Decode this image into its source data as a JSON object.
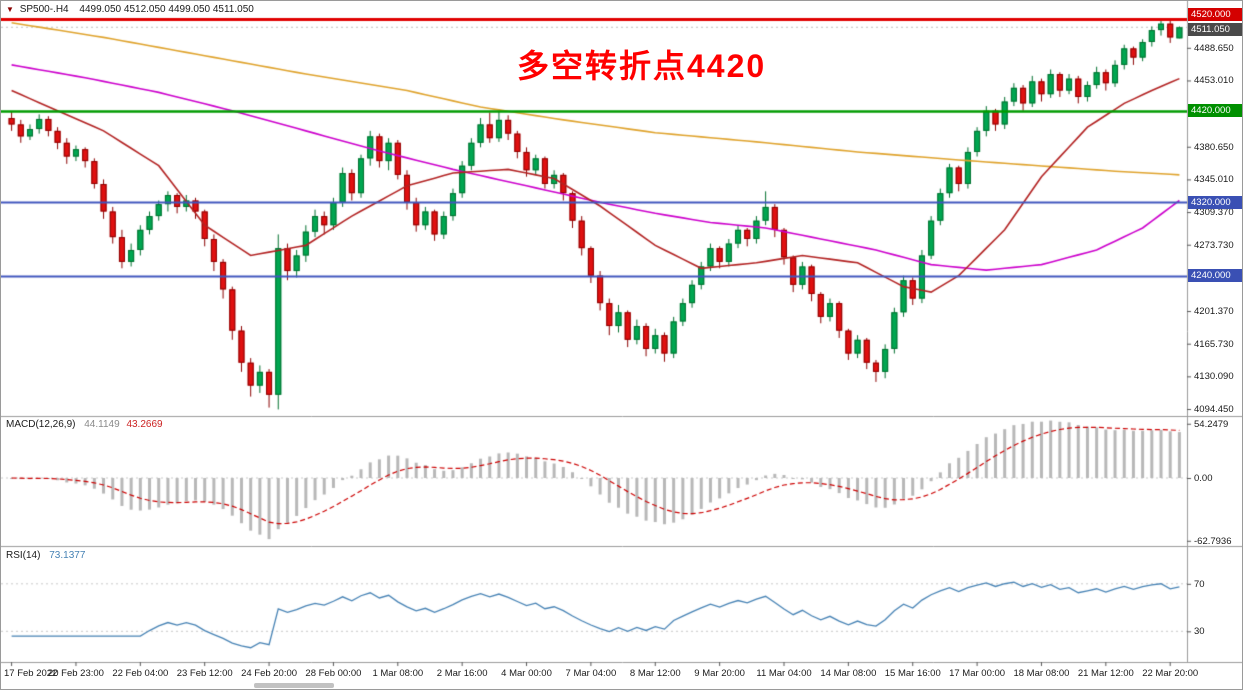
{
  "title": {
    "dropdown_icon": "▼",
    "symbol": "SP500-.H4",
    "ohlc": "4499.050 4512.050 4499.050 4511.050"
  },
  "annotation": {
    "text": "多空转折点4420",
    "color": "#FF0000"
  },
  "panels": {
    "macd": {
      "name": "MACD(12,26,9)",
      "value_main": "44.1149",
      "value_signal": "43.2669"
    },
    "rsi": {
      "name": "RSI(14)",
      "value": "73.1377"
    }
  },
  "colors": {
    "background": "#FFFFFF",
    "candle_up": "#00A651",
    "candle_up_border": "#00702F",
    "candle_down": "#E01010",
    "candle_down_border": "#8B0000",
    "ma_slow": "#DFA32D",
    "ma_mid": "#CC00CC",
    "ma_fast": "#B22222",
    "macd_hist": "#B8B8B8",
    "macd_signal": "#CC0000",
    "rsi_line": "#4682B4",
    "line_resistance": "#E00000",
    "line_pivot": "#009B00",
    "line_support": "#4056BE"
  },
  "chart_data": {
    "type": "candlestick",
    "symbol": "SP500-.H4",
    "timeframe": "H4",
    "title": "SP500-.H4 4499.050 4512.050 4499.050 4511.050",
    "grid": "off",
    "ylim": [
      4089,
      4531
    ],
    "ohlc_current": {
      "open": 4499.05,
      "high": 4512.05,
      "low": 4499.05,
      "close": 4511.05
    },
    "candles": [
      [
        4412,
        4419,
        4398,
        4405
      ],
      [
        4405,
        4410,
        4385,
        4392
      ],
      [
        4392,
        4405,
        4388,
        4400
      ],
      [
        4400,
        4416,
        4395,
        4411
      ],
      [
        4411,
        4414,
        4392,
        4398
      ],
      [
        4398,
        4402,
        4378,
        4385
      ],
      [
        4385,
        4390,
        4362,
        4370
      ],
      [
        4370,
        4382,
        4365,
        4378
      ],
      [
        4378,
        4380,
        4358,
        4365
      ],
      [
        4365,
        4368,
        4335,
        4340
      ],
      [
        4340,
        4345,
        4302,
        4310
      ],
      [
        4310,
        4315,
        4275,
        4282
      ],
      [
        4282,
        4290,
        4248,
        4255
      ],
      [
        4255,
        4275,
        4250,
        4268
      ],
      [
        4268,
        4295,
        4262,
        4290
      ],
      [
        4290,
        4310,
        4285,
        4305
      ],
      [
        4305,
        4322,
        4300,
        4318
      ],
      [
        4318,
        4332,
        4310,
        4328
      ],
      [
        4328,
        4330,
        4308,
        4315
      ],
      [
        4315,
        4328,
        4310,
        4322
      ],
      [
        4322,
        4325,
        4302,
        4310
      ],
      [
        4310,
        4312,
        4272,
        4280
      ],
      [
        4280,
        4285,
        4245,
        4255
      ],
      [
        4255,
        4258,
        4215,
        4225
      ],
      [
        4225,
        4228,
        4170,
        4180
      ],
      [
        4180,
        4185,
        4135,
        4145
      ],
      [
        4145,
        4150,
        4108,
        4120
      ],
      [
        4120,
        4142,
        4112,
        4135
      ],
      [
        4135,
        4138,
        4096,
        4110
      ],
      [
        4110,
        4285,
        4094,
        4270
      ],
      [
        4270,
        4275,
        4235,
        4245
      ],
      [
        4245,
        4268,
        4238,
        4262
      ],
      [
        4262,
        4295,
        4255,
        4288
      ],
      [
        4288,
        4312,
        4282,
        4305
      ],
      [
        4305,
        4310,
        4285,
        4295
      ],
      [
        4295,
        4325,
        4290,
        4320
      ],
      [
        4320,
        4358,
        4315,
        4352
      ],
      [
        4352,
        4356,
        4322,
        4330
      ],
      [
        4330,
        4372,
        4325,
        4368
      ],
      [
        4368,
        4398,
        4360,
        4392
      ],
      [
        4392,
        4395,
        4358,
        4365
      ],
      [
        4365,
        4390,
        4355,
        4385
      ],
      [
        4385,
        4388,
        4345,
        4350
      ],
      [
        4350,
        4355,
        4312,
        4320
      ],
      [
        4320,
        4325,
        4288,
        4295
      ],
      [
        4295,
        4315,
        4290,
        4310
      ],
      [
        4310,
        4312,
        4278,
        4285
      ],
      [
        4285,
        4310,
        4280,
        4305
      ],
      [
        4305,
        4335,
        4300,
        4330
      ],
      [
        4330,
        4365,
        4325,
        4360
      ],
      [
        4360,
        4390,
        4355,
        4385
      ],
      [
        4385,
        4412,
        4380,
        4405
      ],
      [
        4405,
        4418,
        4385,
        4390
      ],
      [
        4390,
        4420,
        4386,
        4410
      ],
      [
        4410,
        4415,
        4388,
        4395
      ],
      [
        4395,
        4398,
        4368,
        4375
      ],
      [
        4375,
        4380,
        4348,
        4355
      ],
      [
        4355,
        4372,
        4350,
        4368
      ],
      [
        4368,
        4370,
        4335,
        4340
      ],
      [
        4340,
        4355,
        4335,
        4350
      ],
      [
        4350,
        4352,
        4322,
        4330
      ],
      [
        4330,
        4332,
        4292,
        4300
      ],
      [
        4300,
        4305,
        4262,
        4270
      ],
      [
        4270,
        4272,
        4232,
        4240
      ],
      [
        4240,
        4245,
        4202,
        4210
      ],
      [
        4210,
        4215,
        4175,
        4185
      ],
      [
        4185,
        4208,
        4178,
        4200
      ],
      [
        4200,
        4202,
        4162,
        4170
      ],
      [
        4170,
        4192,
        4165,
        4185
      ],
      [
        4185,
        4188,
        4152,
        4160
      ],
      [
        4160,
        4182,
        4155,
        4175
      ],
      [
        4175,
        4178,
        4146,
        4155
      ],
      [
        4155,
        4195,
        4150,
        4190
      ],
      [
        4190,
        4215,
        4185,
        4210
      ],
      [
        4210,
        4235,
        4205,
        4230
      ],
      [
        4230,
        4255,
        4225,
        4250
      ],
      [
        4250,
        4275,
        4245,
        4270
      ],
      [
        4270,
        4272,
        4248,
        4255
      ],
      [
        4255,
        4280,
        4250,
        4275
      ],
      [
        4275,
        4295,
        4270,
        4290
      ],
      [
        4290,
        4292,
        4272,
        4280
      ],
      [
        4280,
        4305,
        4275,
        4300
      ],
      [
        4300,
        4332,
        4295,
        4315
      ],
      [
        4315,
        4318,
        4282,
        4290
      ],
      [
        4290,
        4292,
        4252,
        4260
      ],
      [
        4260,
        4262,
        4222,
        4230
      ],
      [
        4230,
        4255,
        4225,
        4250
      ],
      [
        4250,
        4252,
        4212,
        4220
      ],
      [
        4220,
        4222,
        4188,
        4195
      ],
      [
        4195,
        4215,
        4190,
        4210
      ],
      [
        4210,
        4212,
        4172,
        4180
      ],
      [
        4180,
        4182,
        4148,
        4155
      ],
      [
        4155,
        4175,
        4150,
        4170
      ],
      [
        4170,
        4172,
        4138,
        4145
      ],
      [
        4145,
        4148,
        4124,
        4135
      ],
      [
        4135,
        4165,
        4128,
        4160
      ],
      [
        4160,
        4205,
        4155,
        4200
      ],
      [
        4200,
        4240,
        4195,
        4235
      ],
      [
        4235,
        4238,
        4208,
        4215
      ],
      [
        4215,
        4268,
        4210,
        4262
      ],
      [
        4262,
        4305,
        4258,
        4300
      ],
      [
        4300,
        4335,
        4295,
        4330
      ],
      [
        4330,
        4362,
        4325,
        4358
      ],
      [
        4358,
        4360,
        4332,
        4340
      ],
      [
        4340,
        4380,
        4335,
        4375
      ],
      [
        4375,
        4402,
        4370,
        4398
      ],
      [
        4398,
        4425,
        4392,
        4420
      ],
      [
        4420,
        4422,
        4398,
        4405
      ],
      [
        4405,
        4435,
        4400,
        4430
      ],
      [
        4430,
        4450,
        4425,
        4445
      ],
      [
        4445,
        4448,
        4420,
        4428
      ],
      [
        4428,
        4458,
        4424,
        4452
      ],
      [
        4452,
        4455,
        4430,
        4438
      ],
      [
        4438,
        4465,
        4434,
        4460
      ],
      [
        4460,
        4462,
        4435,
        4442
      ],
      [
        4442,
        4460,
        4438,
        4455
      ],
      [
        4455,
        4458,
        4428,
        4435
      ],
      [
        4435,
        4452,
        4430,
        4448
      ],
      [
        4448,
        4468,
        4444,
        4462
      ],
      [
        4462,
        4465,
        4442,
        4450
      ],
      [
        4450,
        4475,
        4446,
        4470
      ],
      [
        4470,
        4492,
        4465,
        4488
      ],
      [
        4488,
        4490,
        4470,
        4478
      ],
      [
        4478,
        4498,
        4474,
        4495
      ],
      [
        4495,
        4512,
        4490,
        4508
      ],
      [
        4508,
        4520,
        4502,
        4515
      ],
      [
        4515,
        4518,
        4494,
        4500
      ],
      [
        4499,
        4512,
        4499,
        4511
      ]
    ],
    "overlays": [
      {
        "name": "ma-slow-orange",
        "color": "#DFA32D",
        "points": [
          [
            0,
            4516
          ],
          [
            10,
            4500
          ],
          [
            21,
            4480
          ],
          [
            32,
            4460
          ],
          [
            43,
            4442
          ],
          [
            51,
            4424
          ],
          [
            60,
            4410
          ],
          [
            70,
            4396
          ],
          [
            81,
            4386
          ],
          [
            92,
            4375
          ],
          [
            102,
            4367
          ],
          [
            113,
            4359
          ],
          [
            120,
            4354
          ],
          [
            127,
            4350
          ]
        ]
      },
      {
        "name": "ma-mid-magenta",
        "color": "#CC00CC",
        "points": [
          [
            0,
            4470
          ],
          [
            8,
            4456
          ],
          [
            16,
            4440
          ],
          [
            24,
            4420
          ],
          [
            32,
            4398
          ],
          [
            40,
            4376
          ],
          [
            48,
            4356
          ],
          [
            56,
            4338
          ],
          [
            64,
            4320
          ],
          [
            70,
            4308
          ],
          [
            76,
            4298
          ],
          [
            82,
            4292
          ],
          [
            88,
            4280
          ],
          [
            94,
            4268
          ],
          [
            100,
            4252
          ],
          [
            106,
            4246
          ],
          [
            112,
            4252
          ],
          [
            118,
            4268
          ],
          [
            123,
            4292
          ],
          [
            127,
            4322
          ]
        ]
      },
      {
        "name": "ma-fast-red",
        "color": "#B22222",
        "points": [
          [
            0,
            4442
          ],
          [
            5,
            4420
          ],
          [
            10,
            4398
          ],
          [
            16,
            4360
          ],
          [
            21,
            4295
          ],
          [
            26,
            4262
          ],
          [
            32,
            4273
          ],
          [
            37,
            4305
          ],
          [
            43,
            4338
          ],
          [
            48,
            4352
          ],
          [
            54,
            4356
          ],
          [
            59,
            4346
          ],
          [
            64,
            4316
          ],
          [
            70,
            4273
          ],
          [
            75,
            4248
          ],
          [
            81,
            4254
          ],
          [
            86,
            4262
          ],
          [
            92,
            4254
          ],
          [
            97,
            4228
          ],
          [
            100,
            4222
          ],
          [
            103,
            4240
          ],
          [
            108,
            4290
          ],
          [
            112,
            4348
          ],
          [
            117,
            4402
          ],
          [
            121,
            4428
          ],
          [
            124,
            4442
          ],
          [
            127,
            4455
          ]
        ]
      }
    ],
    "hlines": [
      {
        "name": "resistance-line-4520",
        "price": 4520,
        "color": "#E00000",
        "width": 3,
        "dash": null,
        "layer": "over"
      },
      {
        "name": "bid-price-line",
        "price": 4511.05,
        "color": "#C0C0C0",
        "width": 1,
        "dash": [
          2,
          3
        ],
        "layer": "under"
      },
      {
        "name": "pivot-line-4420",
        "price": 4420,
        "color": "#009B00",
        "width": 2.5,
        "dash": null,
        "layer": "over"
      },
      {
        "name": "support-line-4320",
        "price": 4320,
        "color": "#4056BE",
        "width": 2,
        "dash": null,
        "layer": "over"
      },
      {
        "name": "support-line-4240",
        "price": 4240,
        "color": "#4056BE",
        "width": 2,
        "dash": null,
        "layer": "over"
      }
    ],
    "y_ticks": [
      {
        "label": "4488.650",
        "price": 4488.65
      },
      {
        "label": "4453.010",
        "price": 4453.01
      },
      {
        "label": "4380.650",
        "price": 4380.65
      },
      {
        "label": "4345.010",
        "price": 4345.01
      },
      {
        "label": "4309.370",
        "price": 4309.37
      },
      {
        "label": "4273.730",
        "price": 4273.73
      },
      {
        "label": "4201.370",
        "price": 4201.37
      },
      {
        "label": "4165.730",
        "price": 4165.73
      },
      {
        "label": "4130.090",
        "price": 4130.09
      },
      {
        "label": "4094.450",
        "price": 4094.45
      }
    ],
    "price_tags": [
      {
        "label": "4520.000",
        "price": 4520,
        "bg": "#D40000",
        "dy": -5
      },
      {
        "label": "4511.050",
        "price": 4511.05,
        "bg": "#4A4A4A",
        "dy": 2
      },
      {
        "label": "4420.000",
        "price": 4420,
        "bg": "#009000",
        "dy": 0
      },
      {
        "label": "4320.000",
        "price": 4320,
        "bg": "#3A50B4",
        "dy": 0
      },
      {
        "label": "4240.000",
        "price": 4240,
        "bg": "#3A50B4",
        "dy": 0
      }
    ],
    "x_ticks": {
      "step_candles": 7,
      "labels": [
        "17 Feb 2022",
        "20 Feb 23:00",
        "22 Feb 04:00",
        "23 Feb 12:00",
        "24 Feb 20:00",
        "28 Feb 00:00",
        "1 Mar 08:00",
        "2 Mar 16:00",
        "4 Mar 00:00",
        "7 Mar 04:00",
        "8 Mar 12:00",
        "9 Mar 20:00",
        "11 Mar 04:00",
        "14 Mar 08:00",
        "15 Mar 16:00",
        "17 Mar 00:00",
        "18 Mar 08:00",
        "21 Mar 12:00",
        "22 Mar 20:00"
      ]
    },
    "indicators": {
      "macd": {
        "params": [
          12,
          26,
          9
        ],
        "ylim": [
          -67,
          61
        ],
        "axis": [
          {
            "v": 54.2479,
            "label": "54.2479"
          },
          {
            "v": 0,
            "label": "0.00"
          },
          {
            "v": -62.7936,
            "label": "-62.7936"
          }
        ],
        "last_main": 44.1149,
        "last_signal": 43.2669
      },
      "rsi": {
        "period": 14,
        "ylim": [
          5,
          101
        ],
        "levels": [
          70,
          30
        ],
        "axis": [
          {
            "v": 70,
            "label": "70"
          },
          {
            "v": 30,
            "label": "30"
          }
        ],
        "last": 73.1377
      }
    }
  }
}
